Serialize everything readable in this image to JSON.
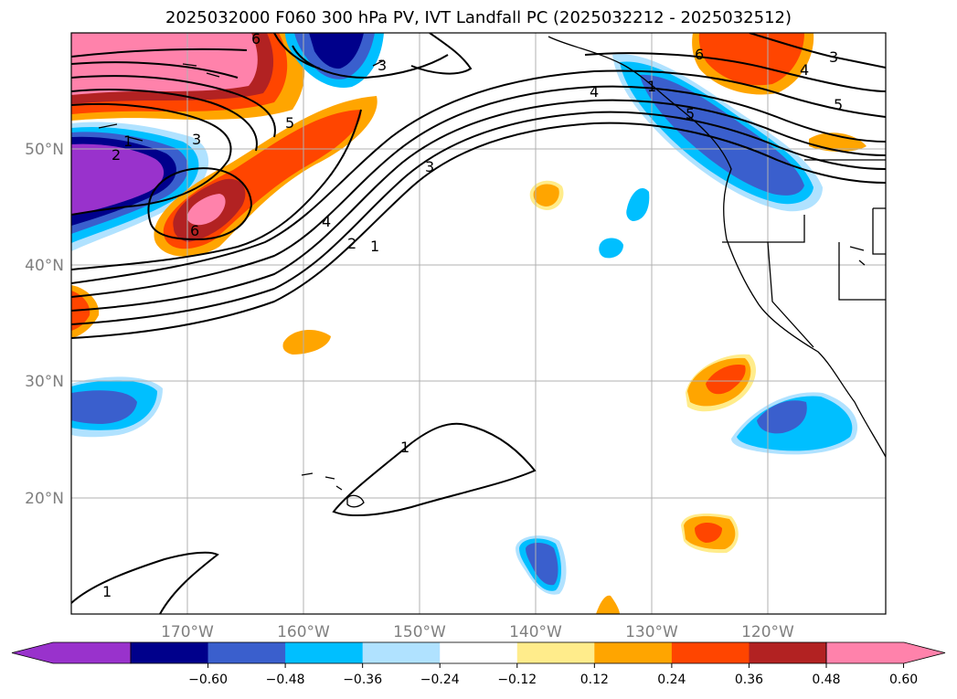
{
  "title": "2025032000 F060 300 hPa PV, IVT Landfall PC (2025032212 - 2025032512)",
  "lat_labels": [
    "50°N",
    "40°N",
    "30°N",
    "20°N"
  ],
  "lon_labels": [
    "170°W",
    "160°W",
    "150°W",
    "140°W",
    "130°W",
    "120°W"
  ],
  "colorbar": {
    "ticks": [
      "−0.60",
      "−0.48",
      "−0.36",
      "−0.24",
      "−0.12",
      "0.12",
      "0.24",
      "0.36",
      "0.48",
      "0.60"
    ],
    "colors": [
      "#9932cc",
      "#00008b",
      "#3a5fcd",
      "#00bfff",
      "#b0e2ff",
      "#ffffff",
      "#ffec8b",
      "#ffa500",
      "#ff4500",
      "#b22222",
      "#ff82ab"
    ]
  },
  "contour_labels": {
    "c1": "1",
    "c2": "2",
    "c3": "3",
    "c4": "4",
    "c5": "5",
    "c6": "6"
  },
  "colors": {
    "grid": "#b0b0b0",
    "contour": "#000000"
  }
}
